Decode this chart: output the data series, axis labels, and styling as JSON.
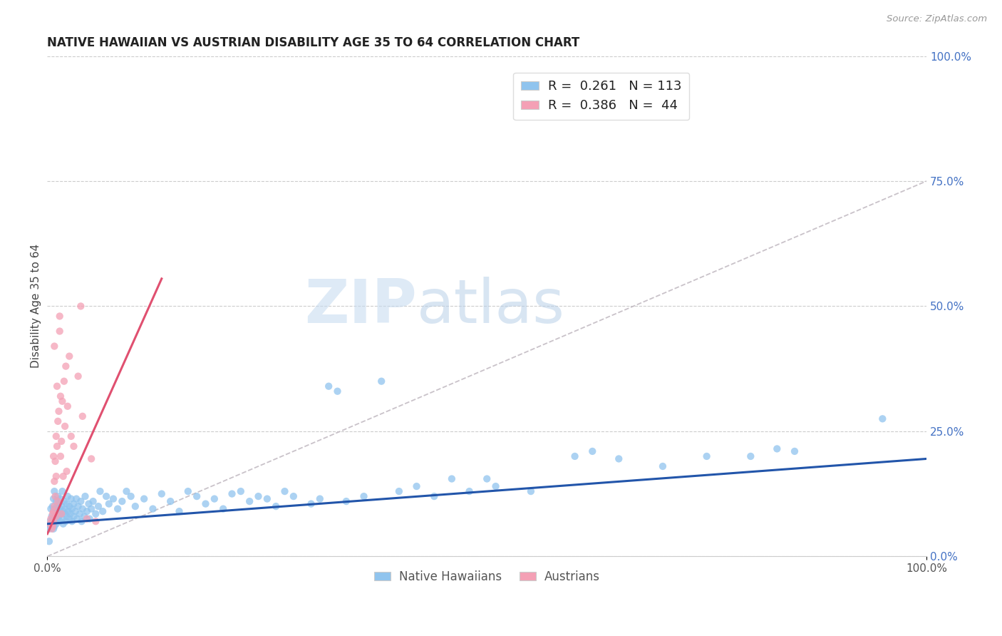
{
  "title": "NATIVE HAWAIIAN VS AUSTRIAN DISABILITY AGE 35 TO 64 CORRELATION CHART",
  "source": "Source: ZipAtlas.com",
  "ylabel": "Disability Age 35 to 64",
  "xlim": [
    0,
    1
  ],
  "ylim": [
    0,
    1
  ],
  "xtick_labels": [
    "0.0%",
    "100.0%"
  ],
  "ytick_labels_right": [
    "100.0%",
    "75.0%",
    "50.0%",
    "25.0%",
    "0.0%"
  ],
  "ytick_positions_right": [
    1.0,
    0.75,
    0.5,
    0.25,
    0.0
  ],
  "blue_color": "#90C4EE",
  "pink_color": "#F4A0B5",
  "blue_line_color": "#2255AA",
  "pink_line_color": "#E05070",
  "dashed_line_color": "#C0B8C0",
  "watermark_zip": "ZIP",
  "watermark_atlas": "atlas",
  "native_hawaiians": [
    [
      0.002,
      0.055
    ],
    [
      0.003,
      0.07
    ],
    [
      0.004,
      0.095
    ],
    [
      0.004,
      0.06
    ],
    [
      0.005,
      0.08
    ],
    [
      0.005,
      0.065
    ],
    [
      0.006,
      0.1
    ],
    [
      0.006,
      0.075
    ],
    [
      0.007,
      0.09
    ],
    [
      0.007,
      0.055
    ],
    [
      0.007,
      0.115
    ],
    [
      0.008,
      0.13
    ],
    [
      0.008,
      0.08
    ],
    [
      0.008,
      0.06
    ],
    [
      0.009,
      0.095
    ],
    [
      0.009,
      0.07
    ],
    [
      0.01,
      0.11
    ],
    [
      0.01,
      0.085
    ],
    [
      0.01,
      0.065
    ],
    [
      0.011,
      0.1
    ],
    [
      0.011,
      0.075
    ],
    [
      0.012,
      0.09
    ],
    [
      0.012,
      0.12
    ],
    [
      0.013,
      0.105
    ],
    [
      0.013,
      0.08
    ],
    [
      0.014,
      0.095
    ],
    [
      0.014,
      0.07
    ],
    [
      0.015,
      0.115
    ],
    [
      0.015,
      0.085
    ],
    [
      0.016,
      0.1
    ],
    [
      0.017,
      0.075
    ],
    [
      0.017,
      0.13
    ],
    [
      0.018,
      0.09
    ],
    [
      0.018,
      0.065
    ],
    [
      0.019,
      0.11
    ],
    [
      0.02,
      0.085
    ],
    [
      0.02,
      0.095
    ],
    [
      0.021,
      0.07
    ],
    [
      0.022,
      0.105
    ],
    [
      0.022,
      0.08
    ],
    [
      0.023,
      0.12
    ],
    [
      0.024,
      0.09
    ],
    [
      0.025,
      0.075
    ],
    [
      0.025,
      0.1
    ],
    [
      0.026,
      0.085
    ],
    [
      0.027,
      0.115
    ],
    [
      0.028,
      0.07
    ],
    [
      0.028,
      0.095
    ],
    [
      0.03,
      0.105
    ],
    [
      0.03,
      0.08
    ],
    [
      0.032,
      0.09
    ],
    [
      0.033,
      0.115
    ],
    [
      0.034,
      0.075
    ],
    [
      0.035,
      0.1
    ],
    [
      0.037,
      0.085
    ],
    [
      0.038,
      0.11
    ],
    [
      0.039,
      0.07
    ],
    [
      0.04,
      0.095
    ],
    [
      0.042,
      0.08
    ],
    [
      0.043,
      0.12
    ],
    [
      0.045,
      0.09
    ],
    [
      0.047,
      0.105
    ],
    [
      0.048,
      0.075
    ],
    [
      0.05,
      0.095
    ],
    [
      0.052,
      0.11
    ],
    [
      0.055,
      0.085
    ],
    [
      0.058,
      0.1
    ],
    [
      0.06,
      0.13
    ],
    [
      0.063,
      0.09
    ],
    [
      0.067,
      0.12
    ],
    [
      0.07,
      0.105
    ],
    [
      0.075,
      0.115
    ],
    [
      0.08,
      0.095
    ],
    [
      0.085,
      0.11
    ],
    [
      0.09,
      0.13
    ],
    [
      0.095,
      0.12
    ],
    [
      0.1,
      0.1
    ],
    [
      0.11,
      0.115
    ],
    [
      0.12,
      0.095
    ],
    [
      0.13,
      0.125
    ],
    [
      0.14,
      0.11
    ],
    [
      0.15,
      0.09
    ],
    [
      0.16,
      0.13
    ],
    [
      0.17,
      0.12
    ],
    [
      0.18,
      0.105
    ],
    [
      0.19,
      0.115
    ],
    [
      0.2,
      0.095
    ],
    [
      0.21,
      0.125
    ],
    [
      0.22,
      0.13
    ],
    [
      0.23,
      0.11
    ],
    [
      0.24,
      0.12
    ],
    [
      0.25,
      0.115
    ],
    [
      0.26,
      0.1
    ],
    [
      0.27,
      0.13
    ],
    [
      0.28,
      0.12
    ],
    [
      0.3,
      0.105
    ],
    [
      0.31,
      0.115
    ],
    [
      0.32,
      0.34
    ],
    [
      0.33,
      0.33
    ],
    [
      0.34,
      0.11
    ],
    [
      0.36,
      0.12
    ],
    [
      0.38,
      0.35
    ],
    [
      0.4,
      0.13
    ],
    [
      0.42,
      0.14
    ],
    [
      0.44,
      0.12
    ],
    [
      0.46,
      0.155
    ],
    [
      0.48,
      0.13
    ],
    [
      0.5,
      0.155
    ],
    [
      0.51,
      0.14
    ],
    [
      0.55,
      0.13
    ],
    [
      0.6,
      0.2
    ],
    [
      0.62,
      0.21
    ],
    [
      0.65,
      0.195
    ],
    [
      0.7,
      0.18
    ],
    [
      0.75,
      0.2
    ],
    [
      0.8,
      0.2
    ],
    [
      0.83,
      0.215
    ],
    [
      0.85,
      0.21
    ],
    [
      0.95,
      0.275
    ],
    [
      0.002,
      0.03
    ]
  ],
  "austrians": [
    [
      0.003,
      0.065
    ],
    [
      0.004,
      0.075
    ],
    [
      0.005,
      0.055
    ],
    [
      0.005,
      0.065
    ],
    [
      0.006,
      0.085
    ],
    [
      0.006,
      0.06
    ],
    [
      0.007,
      0.07
    ],
    [
      0.007,
      0.09
    ],
    [
      0.007,
      0.2
    ],
    [
      0.008,
      0.15
    ],
    [
      0.008,
      0.1
    ],
    [
      0.008,
      0.42
    ],
    [
      0.009,
      0.12
    ],
    [
      0.009,
      0.19
    ],
    [
      0.01,
      0.08
    ],
    [
      0.01,
      0.16
    ],
    [
      0.01,
      0.24
    ],
    [
      0.011,
      0.34
    ],
    [
      0.011,
      0.22
    ],
    [
      0.012,
      0.11
    ],
    [
      0.012,
      0.27
    ],
    [
      0.013,
      0.29
    ],
    [
      0.014,
      0.45
    ],
    [
      0.014,
      0.48
    ],
    [
      0.015,
      0.2
    ],
    [
      0.015,
      0.32
    ],
    [
      0.016,
      0.085
    ],
    [
      0.016,
      0.23
    ],
    [
      0.017,
      0.31
    ],
    [
      0.018,
      0.16
    ],
    [
      0.019,
      0.35
    ],
    [
      0.02,
      0.26
    ],
    [
      0.021,
      0.38
    ],
    [
      0.022,
      0.17
    ],
    [
      0.023,
      0.3
    ],
    [
      0.025,
      0.4
    ],
    [
      0.027,
      0.24
    ],
    [
      0.03,
      0.22
    ],
    [
      0.035,
      0.36
    ],
    [
      0.038,
      0.5
    ],
    [
      0.04,
      0.28
    ],
    [
      0.045,
      0.075
    ],
    [
      0.05,
      0.195
    ],
    [
      0.055,
      0.07
    ]
  ],
  "blue_trend_x": [
    0.0,
    1.0
  ],
  "blue_trend_y": [
    0.065,
    0.195
  ],
  "pink_trend_x": [
    0.0,
    0.13
  ],
  "pink_trend_y": [
    0.045,
    0.555
  ],
  "dashed_trend_x": [
    0.0,
    1.0
  ],
  "dashed_trend_y": [
    0.0,
    0.75
  ]
}
